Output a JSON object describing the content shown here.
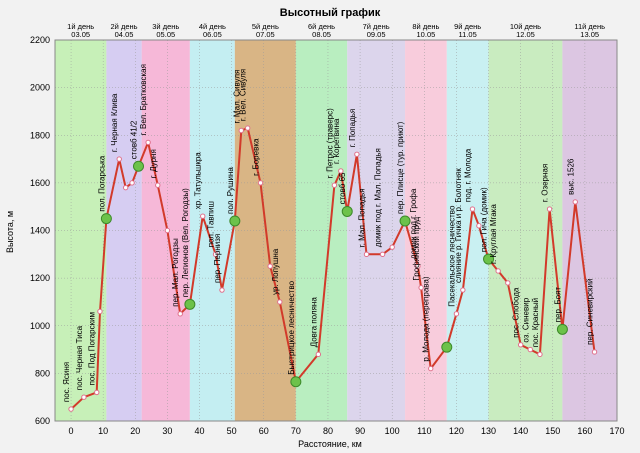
{
  "chart_data": {
    "type": "line",
    "title": "Высотный график",
    "xlabel": "Расстояние, км",
    "ylabel": "Высота, м",
    "xlim": [
      -5,
      170
    ],
    "ylim": [
      600,
      2200
    ],
    "xticks": [
      0,
      10,
      20,
      30,
      40,
      50,
      60,
      70,
      80,
      90,
      100,
      110,
      120,
      130,
      140,
      150,
      160,
      170
    ],
    "yticks": [
      600,
      800,
      1000,
      1200,
      1400,
      1600,
      1800,
      2000,
      2200
    ],
    "grid": true,
    "days": [
      {
        "label": "1й день",
        "date": "03.05",
        "x0": -5,
        "x1": 11,
        "color": "#c7f0b8"
      },
      {
        "label": "2й день",
        "date": "04.05",
        "x0": 11,
        "x1": 22,
        "color": "#d6cdf2"
      },
      {
        "label": "3й день",
        "date": "05.05",
        "x0": 22,
        "x1": 37,
        "color": "#f6b8d8"
      },
      {
        "label": "4й день",
        "date": "06.05",
        "x0": 37,
        "x1": 51,
        "color": "#c4eef2"
      },
      {
        "label": "5й день",
        "date": "07.05",
        "x0": 51,
        "x1": 70,
        "color": "#d9b585"
      },
      {
        "label": "6й день",
        "date": "08.05",
        "x0": 70,
        "x1": 86,
        "color": "#b9eec0"
      },
      {
        "label": "7й день",
        "date": "09.05",
        "x0": 86,
        "x1": 104,
        "color": "#dcd5ec"
      },
      {
        "label": "8й день",
        "date": "10.05",
        "x0": 104,
        "x1": 117,
        "color": "#f8ccdc"
      },
      {
        "label": "9й день",
        "date": "11.05",
        "x0": 117,
        "x1": 130,
        "color": "#c9f0f2"
      },
      {
        "label": "10й день",
        "date": "12.05",
        "x0": 130,
        "x1": 153,
        "color": "#c9ecc0"
      },
      {
        "label": "11й день",
        "date": "13.05",
        "x0": 153,
        "x1": 170,
        "color": "#dcc6e2"
      }
    ],
    "series": [
      {
        "points": [
          {
            "x": 0,
            "y": 650,
            "label": "пос. Ясиня"
          },
          {
            "x": 4,
            "y": 700,
            "label": "пос. Черная Тиса"
          },
          {
            "x": 8,
            "y": 720,
            "label": "пос. Под Погарским"
          },
          {
            "x": 9,
            "y": 1060
          },
          {
            "x": 11,
            "y": 1450,
            "label": "пол. Погарська",
            "major": true
          },
          {
            "x": 15,
            "y": 1700,
            "label": "г. Черная Клива"
          },
          {
            "x": 17,
            "y": 1580
          },
          {
            "x": 19,
            "y": 1600
          },
          {
            "x": 21,
            "y": 1670,
            "label": "стовб 41/2",
            "major": true
          },
          {
            "x": 24,
            "y": 1770,
            "label": "г. Вел. Братковская"
          },
          {
            "x": 27,
            "y": 1590,
            "label": "г. Дурня"
          },
          {
            "x": 30,
            "y": 1400
          },
          {
            "x": 34,
            "y": 1050,
            "label": "пер. Мал. Рогодзы"
          },
          {
            "x": 37,
            "y": 1090,
            "label": "пер. Легионов (Вел. Рогодзы)",
            "major": true
          },
          {
            "x": 41,
            "y": 1460,
            "label": "хр. Татульшкра"
          },
          {
            "x": 45,
            "y": 1300,
            "label": "пол. Тавпиш"
          },
          {
            "x": 47,
            "y": 1150,
            "label": "пер. Пернизя"
          },
          {
            "x": 51,
            "y": 1440,
            "label": "пол. Рушина",
            "major": true
          },
          {
            "x": 53,
            "y": 1820,
            "label": "г. Мал. Сивуля"
          },
          {
            "x": 55,
            "y": 1830,
            "label": "г. Вел. Сивуля"
          },
          {
            "x": 59,
            "y": 1600,
            "label": "г. Боревка"
          },
          {
            "x": 62,
            "y": 1250
          },
          {
            "x": 65,
            "y": 1100,
            "label": "ур. Лопушна"
          },
          {
            "x": 70,
            "y": 765,
            "label": "Быстрицкое лесничество",
            "major": true
          },
          {
            "x": 77,
            "y": 880,
            "label": "Довга поляна"
          },
          {
            "x": 82,
            "y": 1590,
            "label": "г. Петрос (траверс)"
          },
          {
            "x": 84,
            "y": 1650,
            "label": "г. Коретвина"
          },
          {
            "x": 86,
            "y": 1480,
            "label": "стовб 65",
            "major": true
          },
          {
            "x": 89,
            "y": 1720,
            "label": "г. Попадья"
          },
          {
            "x": 92,
            "y": 1300,
            "label": "г. Мал. Попадья"
          },
          {
            "x": 97,
            "y": 1300,
            "label": "домик под г. Мал. Попадья"
          },
          {
            "x": 100,
            "y": 1330
          },
          {
            "x": 104,
            "y": 1440,
            "label": "пер. Плисце (тур. приют)",
            "major": true
          },
          {
            "x": 108,
            "y": 1250,
            "label": "домик под г. Грофа"
          },
          {
            "x": 109,
            "y": 1160,
            "label": "Грофянский пруд"
          },
          {
            "x": 112,
            "y": 820,
            "label": "р. Молода (переправа)"
          },
          {
            "x": 117,
            "y": 910,
            "major": true
          },
          {
            "x": 120,
            "y": 1050,
            "label": "Пасекальское лесничество"
          },
          {
            "x": 122,
            "y": 1150,
            "label": "слияние р. Гичка и р. Болотняк"
          },
          {
            "x": 125,
            "y": 1490,
            "label": "под. г. Молода"
          },
          {
            "x": 127,
            "y": 1420
          },
          {
            "x": 130,
            "y": 1280,
            "label": "пол. Гича (домик)",
            "major": true
          },
          {
            "x": 133,
            "y": 1230,
            "label": "г. Круглая Мгака"
          },
          {
            "x": 136,
            "y": 1180
          },
          {
            "x": 140,
            "y": 920,
            "label": "пос. Слобода"
          },
          {
            "x": 143,
            "y": 900,
            "label": "оз. Синевир"
          },
          {
            "x": 146,
            "y": 880,
            "label": "пос. Красный"
          },
          {
            "x": 149,
            "y": 1490,
            "label": "г. Озерная"
          },
          {
            "x": 153,
            "y": 985,
            "label": "пер. Боят",
            "major": true
          },
          {
            "x": 157,
            "y": 1520,
            "label": "выс. 1526"
          },
          {
            "x": 163,
            "y": 890,
            "label": "пер. Синевирский"
          }
        ]
      }
    ]
  }
}
